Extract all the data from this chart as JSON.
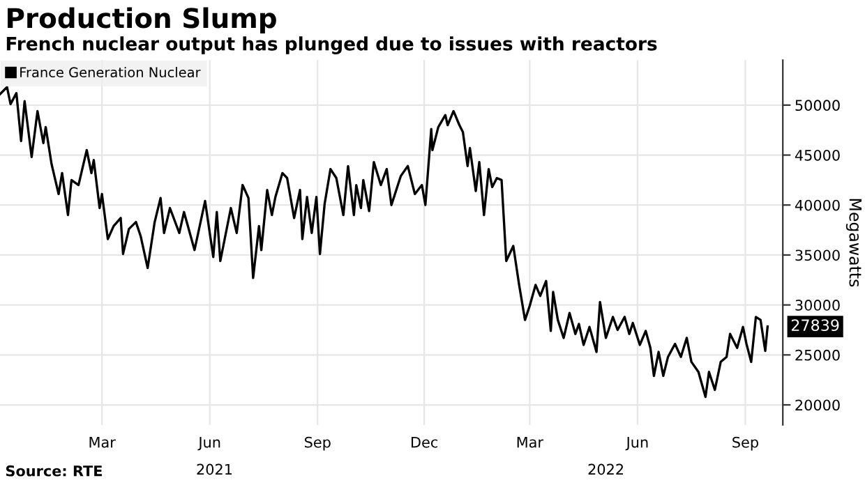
{
  "chart_data": {
    "type": "line",
    "title": "Production Slump",
    "subtitle": "French nuclear output has plunged due to issues with reactors",
    "ylabel": "Megawatts",
    "annotations": [
      "2021",
      "2022",
      "Source: RTE"
    ],
    "x": [
      "2020-12-04",
      "2020-12-10",
      "2020-12-13",
      "2020-12-18",
      "2020-12-22",
      "2020-12-25",
      "2020-12-31",
      "2021-01-05",
      "2021-01-10",
      "2021-01-12",
      "2021-01-17",
      "2021-01-23",
      "2021-01-26",
      "2021-01-31",
      "2021-02-03",
      "2021-02-09",
      "2021-02-16",
      "2021-02-20",
      "2021-02-22",
      "2021-02-27",
      "2021-03-01",
      "2021-03-06",
      "2021-03-11",
      "2021-03-17",
      "2021-03-19",
      "2021-03-24",
      "2021-03-30",
      "2021-04-03",
      "2021-04-09",
      "2021-04-15",
      "2021-04-20",
      "2021-04-23",
      "2021-04-28",
      "2021-05-06",
      "2021-05-10",
      "2021-05-19",
      "2021-05-28",
      "2021-06-04",
      "2021-06-07",
      "2021-06-10",
      "2021-06-19",
      "2021-06-24",
      "2021-06-29",
      "2021-07-04",
      "2021-07-08",
      "2021-07-13",
      "2021-07-15",
      "2021-07-20",
      "2021-07-24",
      "2021-07-27",
      "2021-08-02",
      "2021-08-06",
      "2021-08-12",
      "2021-08-17",
      "2021-08-19",
      "2021-08-23",
      "2021-08-27",
      "2021-08-31",
      "2021-09-03",
      "2021-09-07",
      "2021-09-12",
      "2021-09-17",
      "2021-09-23",
      "2021-09-27",
      "2021-10-02",
      "2021-10-04",
      "2021-10-08",
      "2021-10-10",
      "2021-10-15",
      "2021-10-19",
      "2021-10-25",
      "2021-10-30",
      "2021-11-03",
      "2021-11-11",
      "2021-11-17",
      "2021-11-23",
      "2021-11-29",
      "2021-12-02",
      "2021-12-07",
      "2021-12-08",
      "2021-12-13",
      "2021-12-19",
      "2021-12-21",
      "2021-12-26",
      "2021-12-31",
      "2022-01-03",
      "2022-01-07",
      "2022-01-09",
      "2022-01-14",
      "2022-01-17",
      "2022-01-21",
      "2022-01-25",
      "2022-01-28",
      "2022-02-01",
      "2022-02-05",
      "2022-02-09",
      "2022-02-15",
      "2022-02-20",
      "2022-02-25",
      "2022-03-01",
      "2022-03-06",
      "2022-03-10",
      "2022-03-15",
      "2022-03-19",
      "2022-03-21",
      "2022-03-25",
      "2022-03-30",
      "2022-04-04",
      "2022-04-09",
      "2022-04-12",
      "2022-04-16",
      "2022-04-21",
      "2022-04-27",
      "2022-04-30",
      "2022-05-05",
      "2022-05-11",
      "2022-05-15",
      "2022-05-21",
      "2022-05-25",
      "2022-05-28",
      "2022-06-03",
      "2022-06-08",
      "2022-06-12",
      "2022-06-15",
      "2022-06-19",
      "2022-06-23",
      "2022-06-27",
      "2022-07-03",
      "2022-07-08",
      "2022-07-13",
      "2022-07-17",
      "2022-07-23",
      "2022-07-29",
      "2022-08-01",
      "2022-08-06",
      "2022-08-11",
      "2022-08-16",
      "2022-08-19",
      "2022-08-25",
      "2022-08-30",
      "2022-09-02",
      "2022-09-06",
      "2022-09-10",
      "2022-09-14",
      "2022-09-18",
      "2022-09-20"
    ],
    "series": [
      {
        "name": "France Generation Nuclear",
        "color": "#000000",
        "values": [
          51100,
          51800,
          50100,
          51200,
          46400,
          50400,
          44800,
          49400,
          46200,
          47800,
          44100,
          41100,
          43200,
          39000,
          42500,
          42000,
          45500,
          43200,
          44500,
          39700,
          41100,
          36600,
          37900,
          38700,
          35100,
          37600,
          38300,
          36900,
          33700,
          38300,
          40700,
          37200,
          39700,
          37200,
          39300,
          35500,
          40400,
          34800,
          39300,
          34400,
          39700,
          37200,
          42000,
          40700,
          32700,
          37900,
          35500,
          41500,
          39000,
          40800,
          43200,
          42700,
          38700,
          41500,
          36600,
          40800,
          37200,
          40800,
          35100,
          40100,
          43600,
          42700,
          39000,
          43900,
          39000,
          42000,
          39700,
          42500,
          39400,
          44300,
          42000,
          43600,
          40000,
          42900,
          43900,
          41100,
          42000,
          40000,
          47600,
          45500,
          47800,
          49000,
          48000,
          49400,
          48000,
          47300,
          43900,
          45700,
          41400,
          44300,
          39000,
          43600,
          41800,
          42700,
          42500,
          34400,
          35900,
          32000,
          28500,
          29900,
          32000,
          30900,
          32400,
          27400,
          31300,
          28500,
          26700,
          29200,
          27100,
          28100,
          26000,
          27800,
          25300,
          30300,
          26700,
          28800,
          27500,
          28800,
          27100,
          28200,
          26000,
          27400,
          25700,
          22900,
          25300,
          22900,
          24800,
          26100,
          24800,
          26700,
          24300,
          23300,
          20800,
          23300,
          21500,
          24300,
          24800,
          27100,
          25700,
          27800,
          26100,
          24300,
          28800,
          28500,
          25400,
          27839
        ],
        "value_labels": [
          null,
          null,
          null,
          null,
          null,
          null,
          null,
          null,
          null,
          null,
          null,
          null,
          null,
          null,
          null,
          null,
          null,
          null,
          null,
          null,
          null,
          null,
          null,
          null,
          null,
          null,
          null,
          null,
          null,
          null,
          null,
          null,
          null,
          null,
          null,
          null,
          null,
          null,
          null,
          null,
          null,
          null,
          null,
          null,
          null,
          null,
          null,
          null,
          null,
          null,
          null,
          null,
          null,
          null,
          null,
          null,
          null,
          null,
          null,
          null,
          null,
          null,
          null,
          null,
          null,
          null,
          null,
          null,
          null,
          null,
          null,
          null,
          null,
          null,
          null,
          null,
          null,
          null,
          null,
          null,
          null,
          null,
          null,
          null,
          null,
          null,
          null,
          null,
          null,
          null,
          null,
          null,
          null,
          null,
          null,
          null,
          null,
          null,
          null,
          null,
          null,
          null,
          null,
          null,
          null,
          null,
          null,
          null,
          null,
          null,
          null,
          null,
          null,
          null,
          null,
          null,
          null,
          null,
          null,
          null,
          null,
          null,
          null,
          null,
          null,
          null,
          null,
          null,
          null,
          null,
          null,
          null,
          null,
          null,
          null,
          null,
          null,
          null,
          null,
          null,
          null,
          null,
          null,
          null,
          null,
          "27839"
        ]
      }
    ],
    "xlim": [
      "2020-12-04",
      "2022-10-03"
    ],
    "xticks": [
      {
        "value": "2021-03-01",
        "label": "Mar"
      },
      {
        "value": "2021-06-01",
        "label": "Jun"
      },
      {
        "value": "2021-09-01",
        "label": "Sep"
      },
      {
        "value": "2021-12-01",
        "label": "Dec"
      },
      {
        "value": "2022-03-01",
        "label": "Mar"
      },
      {
        "value": "2022-06-01",
        "label": "Jun"
      },
      {
        "value": "2022-09-01",
        "label": "Sep"
      }
    ],
    "ylim": [
      18000,
      54500
    ],
    "yticks": [
      20000,
      25000,
      30000,
      35000,
      40000,
      45000,
      50000
    ],
    "grid": true,
    "legend": "top left",
    "line_style": "solid"
  }
}
